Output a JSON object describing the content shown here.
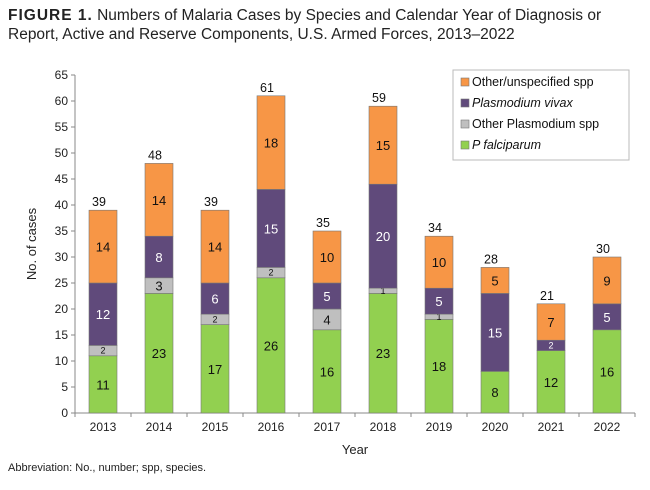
{
  "figure_label": "FIGURE 1.",
  "title": "Numbers of Malaria Cases by Species and Calendar Year of Diagnosis or Report, Active and Reserve Components, U.S. Armed Forces, 2013–2022",
  "footnote": "Abbreviation: No., number; spp, species.",
  "chart_data": {
    "type": "bar",
    "stacked": true,
    "xlabel": "Year",
    "ylabel": "No. of cases",
    "ylim": [
      0,
      65
    ],
    "yticks": [
      0,
      5,
      10,
      15,
      20,
      25,
      30,
      35,
      40,
      45,
      50,
      55,
      60,
      65
    ],
    "grid": false,
    "legend_position": "top-right",
    "categories": [
      "2013",
      "2014",
      "2015",
      "2016",
      "2017",
      "2018",
      "2019",
      "2020",
      "2021",
      "2022"
    ],
    "series": [
      {
        "name": "P falciparum",
        "italic": true,
        "color": "#92d050",
        "values": [
          11,
          23,
          17,
          26,
          16,
          23,
          18,
          8,
          12,
          16
        ]
      },
      {
        "name": "Other Plasmodium spp",
        "italic": false,
        "color": "#bfbfbf",
        "values": [
          2,
          3,
          2,
          2,
          4,
          1,
          1,
          0,
          0,
          0
        ]
      },
      {
        "name": "Plasmodium vivax",
        "italic": true,
        "color": "#604a7b",
        "values": [
          12,
          8,
          6,
          15,
          5,
          20,
          5,
          15,
          2,
          5
        ]
      },
      {
        "name": "Other/unspecified spp",
        "italic": false,
        "color": "#f79646",
        "values": [
          14,
          14,
          14,
          18,
          10,
          15,
          10,
          5,
          7,
          9
        ]
      }
    ],
    "totals": [
      39,
      48,
      39,
      61,
      35,
      59,
      34,
      28,
      21,
      30
    ]
  }
}
